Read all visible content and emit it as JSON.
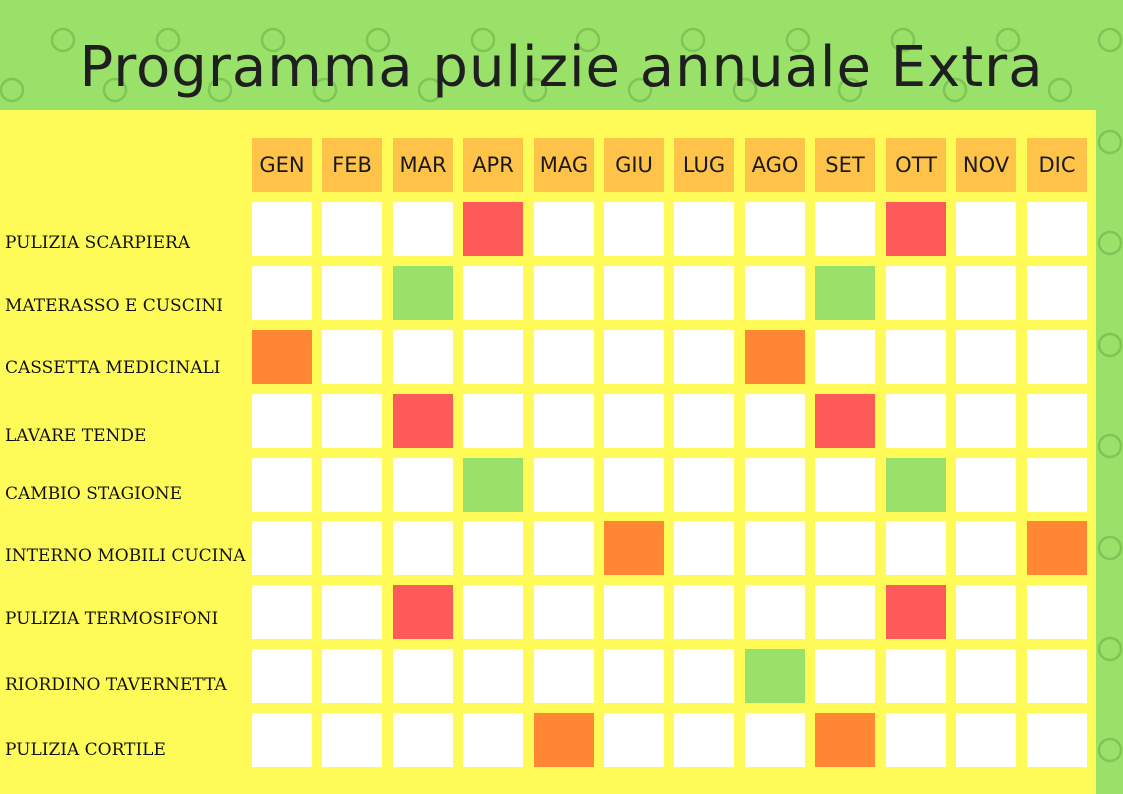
{
  "title": "Programma pulizie annuale Extra",
  "months": [
    "GEN",
    "FEB",
    "MAR",
    "APR",
    "MAG",
    "GIU",
    "LUG",
    "AGO",
    "SET",
    "OTT",
    "NOV",
    "DIC"
  ],
  "colors": {
    "background": "#9ae16a",
    "board": "#fefb58",
    "header": "#ffc34a",
    "empty": "#ffffff",
    "red": "#ff5a5a",
    "green": "#9ae16a",
    "orange": "#ff8633"
  },
  "tasks": [
    {
      "label": "PULIZIA SCARPIERA",
      "marks": {
        "APR": "red",
        "OTT": "red"
      }
    },
    {
      "label": "MATERASSO E CUSCINI",
      "marks": {
        "MAR": "green",
        "SET": "green"
      }
    },
    {
      "label": "CASSETTA MEDICINALI",
      "marks": {
        "GEN": "orange",
        "AGO": "orange"
      }
    },
    {
      "label": "LAVARE TENDE",
      "marks": {
        "MAR": "red",
        "SET": "red"
      }
    },
    {
      "label": "CAMBIO STAGIONE",
      "marks": {
        "APR": "green",
        "OTT": "green"
      }
    },
    {
      "label": "INTERNO MOBILI CUCINA",
      "marks": {
        "GIU": "orange",
        "DIC": "orange"
      }
    },
    {
      "label": "PULIZIA TERMOSIFONI",
      "marks": {
        "MAR": "red",
        "OTT": "red"
      }
    },
    {
      "label": "RIORDINO TAVERNETTA",
      "marks": {
        "AGO": "green"
      }
    },
    {
      "label": "PULIZIA CORTILE",
      "marks": {
        "MAG": "orange",
        "SET": "orange"
      }
    }
  ]
}
